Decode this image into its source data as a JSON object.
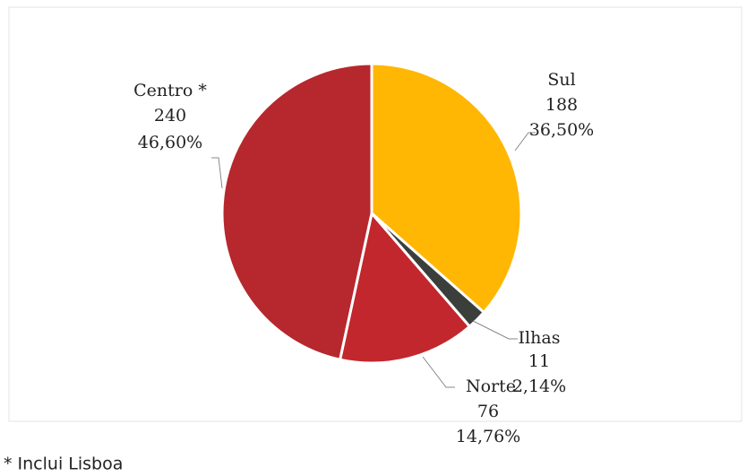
{
  "chart_data": {
    "type": "pie",
    "categories": [
      "Sul",
      "Ilhas",
      "Norte",
      "Centro *"
    ],
    "values": [
      188,
      11,
      76,
      240
    ],
    "percent_labels": [
      "36,50%",
      "2,14%",
      "14,76%",
      "46,60%"
    ],
    "colors": [
      "#ffb703",
      "#3b3f3c",
      "#c1272d",
      "#b6282d"
    ],
    "footnote": "* Inclui Lisboa"
  }
}
